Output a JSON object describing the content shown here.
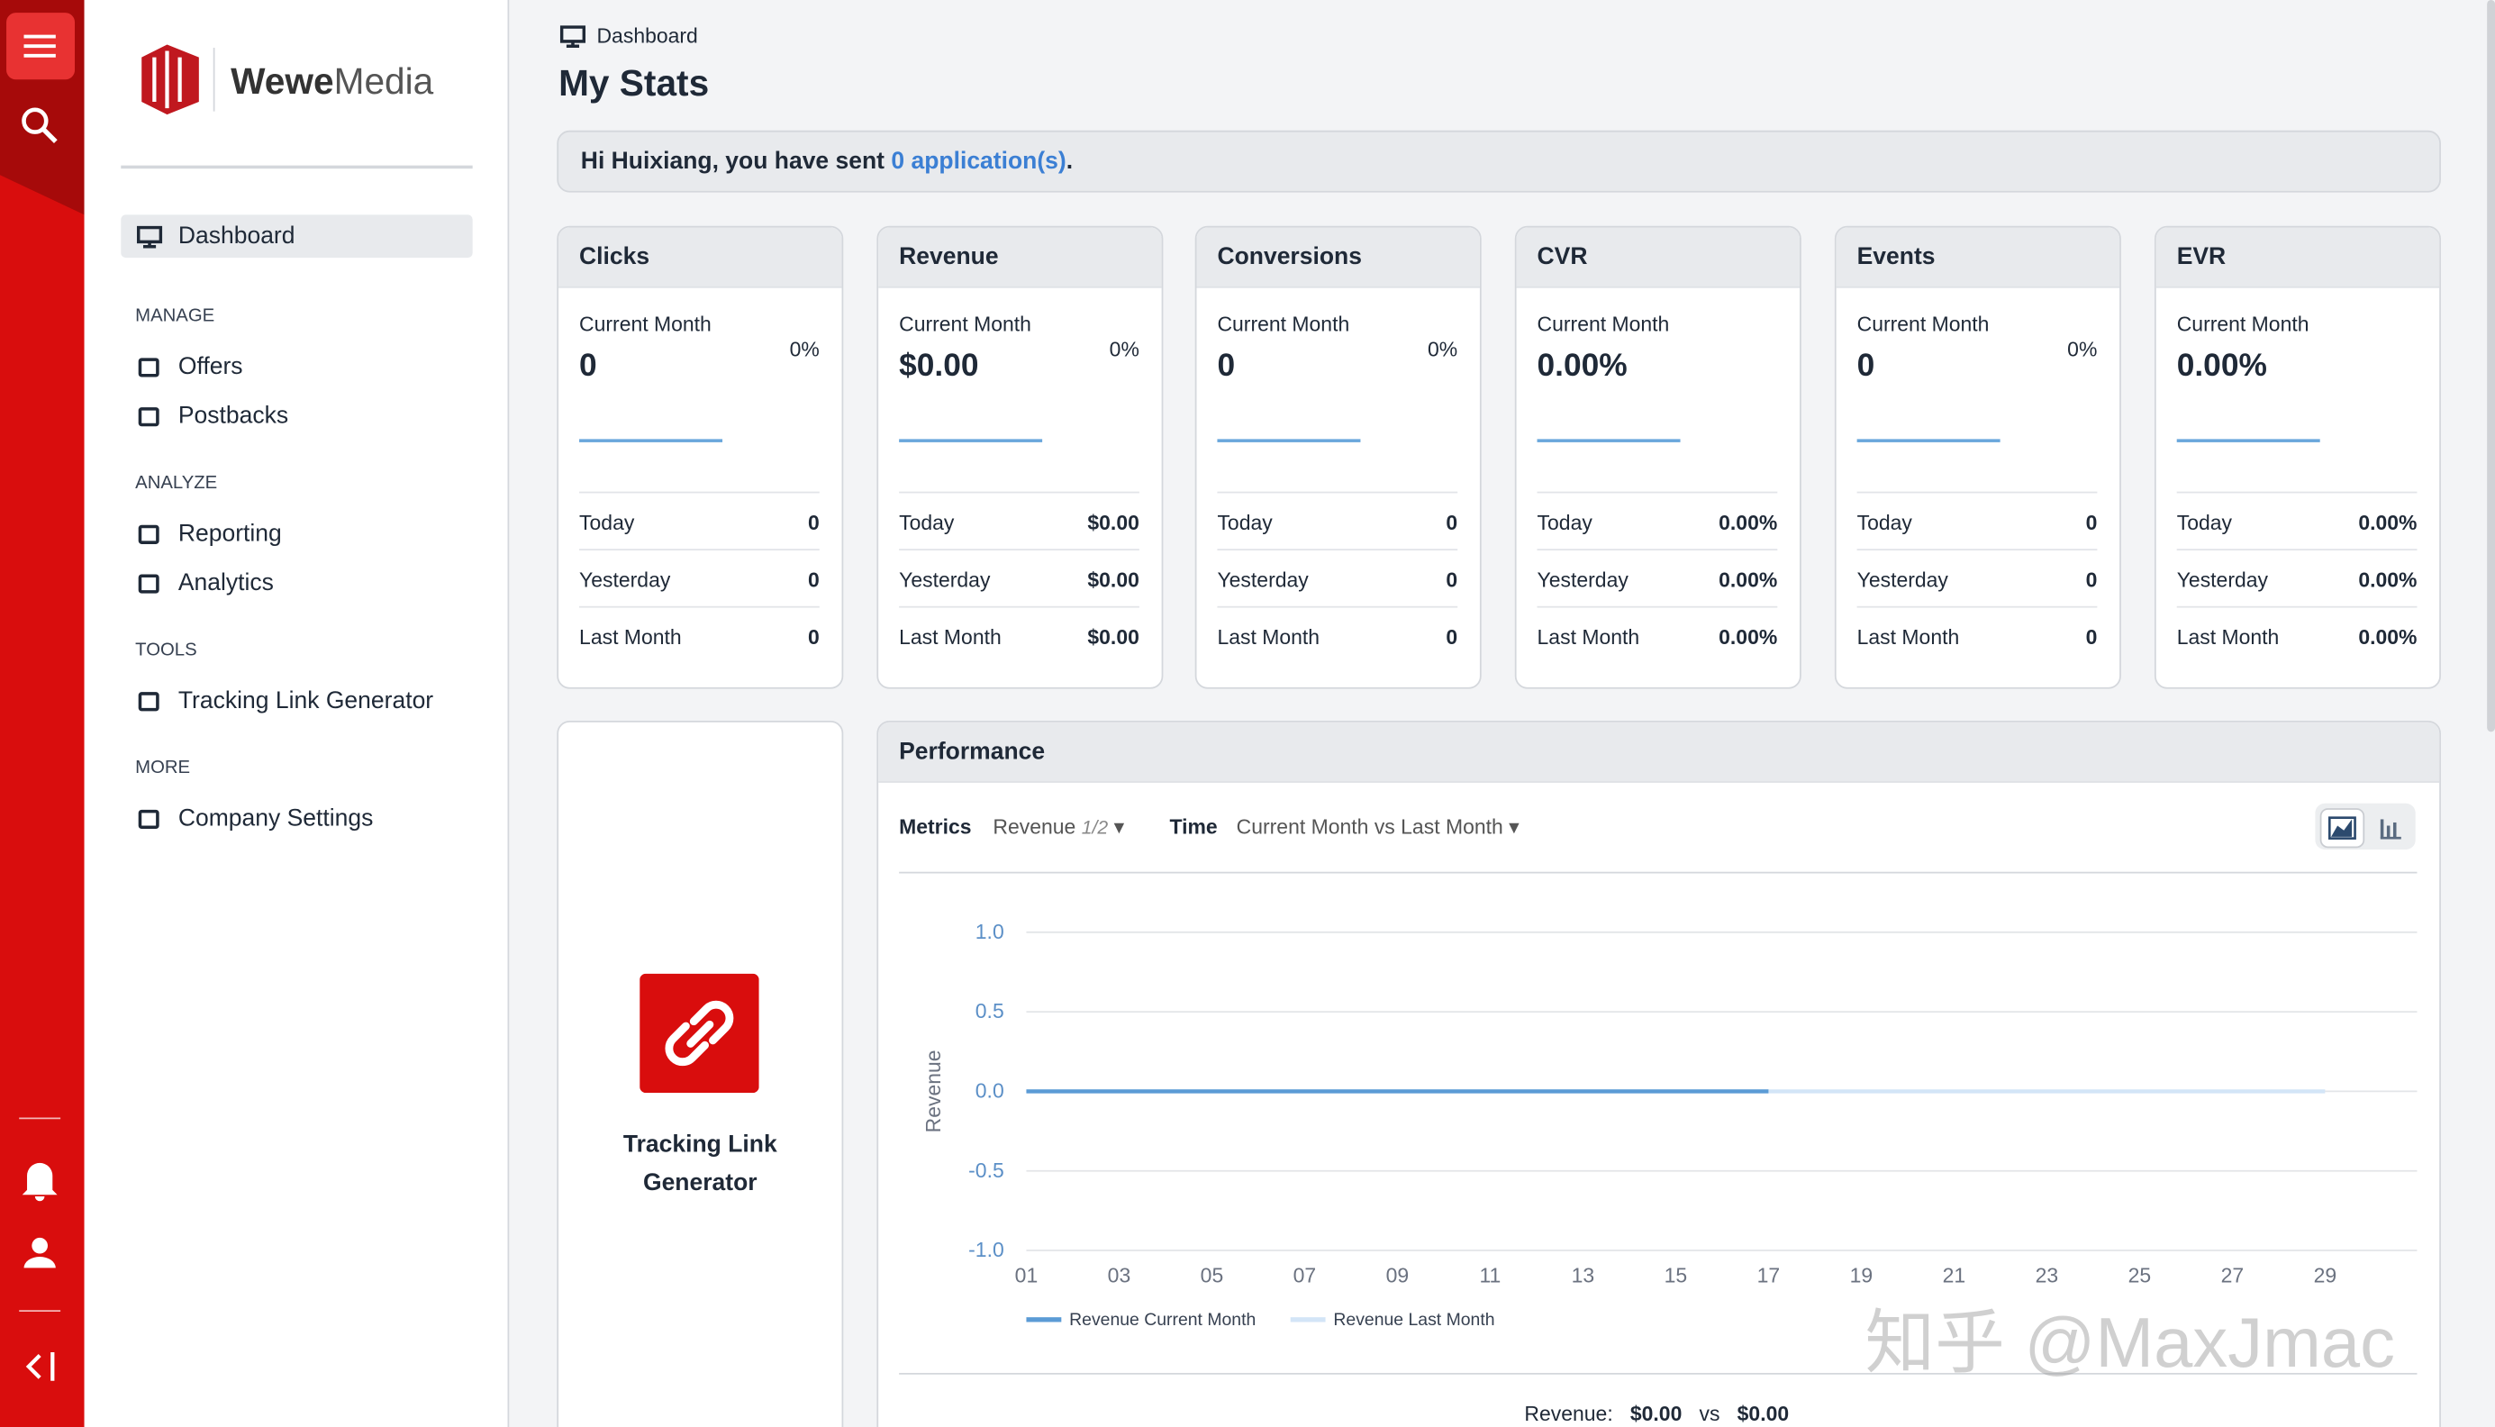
{
  "brand": {
    "bold": "Wewe",
    "light": "Media"
  },
  "nav": {
    "dashboard": "Dashboard",
    "sections": [
      {
        "title": "MANAGE",
        "items": [
          "Offers",
          "Postbacks"
        ]
      },
      {
        "title": "ANALYZE",
        "items": [
          "Reporting",
          "Analytics"
        ]
      },
      {
        "title": "TOOLS",
        "items": [
          "Tracking Link Generator"
        ]
      },
      {
        "title": "MORE",
        "items": [
          "Company Settings"
        ]
      }
    ]
  },
  "breadcrumb": "Dashboard",
  "title": "My Stats",
  "greeting": {
    "text": "Hi Huixiang, you have sent ",
    "link": "0 application(s)",
    "end": "."
  },
  "cards": [
    {
      "title": "Clicks",
      "current_label": "Current Month",
      "current": "0",
      "change": "0%",
      "rows": [
        {
          "label": "Today",
          "value": "0"
        },
        {
          "label": "Yesterday",
          "value": "0"
        },
        {
          "label": "Last Month",
          "value": "0"
        }
      ]
    },
    {
      "title": "Revenue",
      "current_label": "Current Month",
      "current": "$0.00",
      "change": "0%",
      "rows": [
        {
          "label": "Today",
          "value": "$0.00"
        },
        {
          "label": "Yesterday",
          "value": "$0.00"
        },
        {
          "label": "Last Month",
          "value": "$0.00"
        }
      ]
    },
    {
      "title": "Conversions",
      "current_label": "Current Month",
      "current": "0",
      "change": "0%",
      "rows": [
        {
          "label": "Today",
          "value": "0"
        },
        {
          "label": "Yesterday",
          "value": "0"
        },
        {
          "label": "Last Month",
          "value": "0"
        }
      ]
    },
    {
      "title": "CVR",
      "current_label": "Current Month",
      "current": "0.00%",
      "rows": [
        {
          "label": "Today",
          "value": "0.00%"
        },
        {
          "label": "Yesterday",
          "value": "0.00%"
        },
        {
          "label": "Last Month",
          "value": "0.00%"
        }
      ]
    },
    {
      "title": "Events",
      "current_label": "Current Month",
      "current": "0",
      "change": "0%",
      "rows": [
        {
          "label": "Today",
          "value": "0"
        },
        {
          "label": "Yesterday",
          "value": "0"
        },
        {
          "label": "Last Month",
          "value": "0"
        }
      ]
    },
    {
      "title": "EVR",
      "current_label": "Current Month",
      "current": "0.00%",
      "rows": [
        {
          "label": "Today",
          "value": "0.00%"
        },
        {
          "label": "Yesterday",
          "value": "0.00%"
        },
        {
          "label": "Last Month",
          "value": "0.00%"
        }
      ]
    }
  ],
  "tool_card": {
    "title": "Tracking Link Generator"
  },
  "performance": {
    "title": "Performance",
    "metrics_label": "Metrics",
    "metric": "Revenue",
    "metric_count": "1/2",
    "time_label": "Time",
    "time": "Current Month vs Last Month",
    "chart_data": {
      "type": "line",
      "ylabel": "Revenue",
      "ylim": [
        -1,
        1
      ],
      "yticks": [
        {
          "value": 1,
          "label": "1.0"
        },
        {
          "value": 0.5,
          "label": "0.5"
        },
        {
          "value": 0,
          "label": "0.0"
        },
        {
          "value": -0.5,
          "label": "-0.5"
        },
        {
          "value": -1,
          "label": "-1.0"
        }
      ],
      "categories": [
        "01",
        "03",
        "05",
        "07",
        "09",
        "11",
        "13",
        "15",
        "17",
        "19",
        "21",
        "23",
        "25",
        "27",
        "29"
      ],
      "series": [
        {
          "name": "Revenue Current Month",
          "color": "#5b9bd5",
          "values": [
            0,
            0,
            0,
            0,
            0,
            0,
            0,
            0,
            0,
            null,
            null,
            null,
            null,
            null,
            null
          ]
        },
        {
          "name": "Revenue Last Month",
          "color": "#d3e5f7",
          "values": [
            0,
            0,
            0,
            0,
            0,
            0,
            0,
            0,
            0,
            0,
            0,
            0,
            0,
            0,
            0
          ]
        }
      ],
      "grid": true
    },
    "summary": {
      "label": "Revenue:",
      "current": "$0.00",
      "vs": "vs",
      "last": "$0.00"
    }
  },
  "watermark": "知乎 @MaxJmac"
}
